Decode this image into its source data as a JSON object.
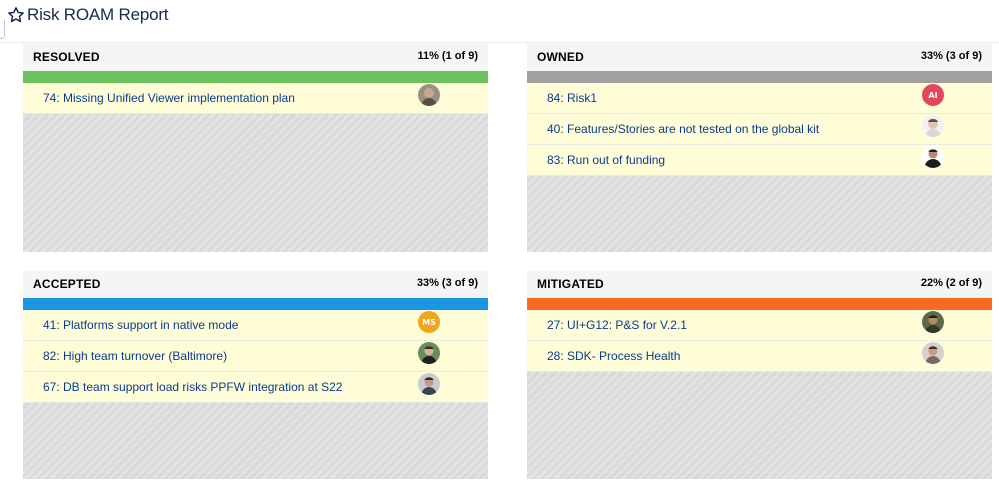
{
  "header": {
    "title": "Risk ROAM Report",
    "icon": "star-outline-icon"
  },
  "panels": [
    {
      "key": "resolved",
      "title": "RESOLVED",
      "percent_text": "11% (1 of 9)",
      "color": "#6cc25d",
      "items": [
        {
          "label": "74: Missing Unified Viewer implementation plan",
          "avatar": "photo"
        }
      ]
    },
    {
      "key": "owned",
      "title": "OWNED",
      "percent_text": "33% (3 of 9)",
      "color": "#a0a0a0",
      "items": [
        {
          "label": "84: Risk1",
          "avatar": "initials",
          "initials": "AI",
          "avatar_color": "#e2475b"
        },
        {
          "label": "40: Features/Stories are not tested on the global kit",
          "avatar": "photo"
        },
        {
          "label": "83: Run out of funding",
          "avatar": "photo"
        }
      ]
    },
    {
      "key": "accepted",
      "title": "ACCEPTED",
      "percent_text": "33% (3 of 9)",
      "color": "#1a97e0",
      "items": [
        {
          "label": "41: Platforms support in native mode",
          "avatar": "initials",
          "initials": "MS",
          "avatar_color": "#f0a51b"
        },
        {
          "label": "82: High team turnover (Baltimore)",
          "avatar": "photo"
        },
        {
          "label": "67: DB team support load risks PPFW integration at S22",
          "avatar": "photo"
        }
      ]
    },
    {
      "key": "mitigated",
      "title": "MITIGATED",
      "percent_text": "22% (2 of 9)",
      "color": "#fa6a24",
      "items": [
        {
          "label": "27: UI+G12: P&S for V.2.1",
          "avatar": "photo"
        },
        {
          "label": "28: SDK- Process Health",
          "avatar": "photo"
        }
      ]
    }
  ]
}
